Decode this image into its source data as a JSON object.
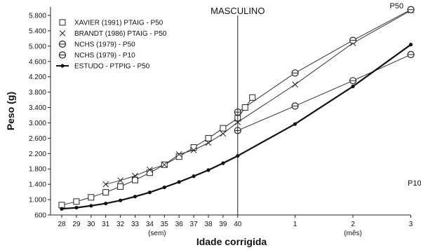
{
  "chart_data": {
    "type": "line",
    "title": "MASCULINO",
    "xlabel": "Idade corrigida",
    "ylabel": "Peso (g)",
    "x_ticks": [
      "28",
      "29",
      "30",
      "31",
      "32",
      "33",
      "34",
      "35",
      "36",
      "37",
      "38",
      "39",
      "40",
      "1",
      "2",
      "3"
    ],
    "x_unit_labels": [
      {
        "text": "(sem)",
        "at": 34.5
      },
      {
        "text": "(mês)",
        "at": 2
      }
    ],
    "x_scale_note": "weeks 28-40 then months 1-3 after term",
    "ylim": [
      600,
      6000
    ],
    "y_ticks": [
      "600",
      "1.000",
      "1.400",
      "1.800",
      "2.200",
      "2.600",
      "3.000",
      "3.400",
      "3.800",
      "4.200",
      "4.600",
      "5.000",
      "5.400",
      "5.800"
    ],
    "y_tick_values": [
      600,
      1000,
      1400,
      1800,
      2200,
      2600,
      3000,
      3400,
      3800,
      4200,
      4600,
      5000,
      5400,
      5800
    ],
    "legend_position": "top-left",
    "end_labels": [
      {
        "text": "P50",
        "series": 2
      },
      {
        "text": "P10",
        "series": 3
      }
    ],
    "series": [
      {
        "name": "XAVIER (1991) PTAIG - P50",
        "marker": "square",
        "points": [
          [
            28,
            860
          ],
          [
            29,
            950
          ],
          [
            30,
            1060
          ],
          [
            31,
            1190
          ],
          [
            32,
            1340
          ],
          [
            33,
            1510
          ],
          [
            34,
            1700
          ],
          [
            35,
            1910
          ],
          [
            36,
            2120
          ],
          [
            37,
            2360
          ],
          [
            38,
            2600
          ],
          [
            39,
            2860
          ],
          [
            40,
            3120
          ],
          [
            40.5,
            3400
          ],
          [
            41,
            3660
          ]
        ]
      },
      {
        "name": "BRANDT (1986) PTAIG - P50",
        "marker": "x",
        "points": [
          [
            31,
            1400
          ],
          [
            32,
            1500
          ],
          [
            33,
            1620
          ],
          [
            34,
            1780
          ],
          [
            35,
            1910
          ],
          [
            36,
            2180
          ],
          [
            37,
            2290
          ],
          [
            38,
            2480
          ],
          [
            39,
            2720
          ],
          [
            40,
            3020
          ],
          [
            1,
            4000
          ],
          [
            2,
            5080
          ],
          [
            3,
            5930
          ]
        ]
      },
      {
        "name": "NCHS (1979) - P50",
        "marker": "circle",
        "points": [
          [
            40,
            3280
          ],
          [
            1,
            4300
          ],
          [
            2,
            5150
          ],
          [
            3,
            5950
          ]
        ]
      },
      {
        "name": "NCHS (1979) - P10",
        "marker": "circle",
        "points": [
          [
            40,
            2800
          ],
          [
            1,
            3440
          ],
          [
            2,
            4100
          ],
          [
            3,
            4780
          ]
        ]
      },
      {
        "name": "ESTUDO - PTPIG - P50",
        "marker": "dot",
        "points": [
          [
            28,
            760
          ],
          [
            29,
            790
          ],
          [
            30,
            840
          ],
          [
            31,
            900
          ],
          [
            32,
            980
          ],
          [
            33,
            1080
          ],
          [
            34,
            1190
          ],
          [
            35,
            1320
          ],
          [
            36,
            1460
          ],
          [
            37,
            1610
          ],
          [
            38,
            1770
          ],
          [
            39,
            1950
          ],
          [
            40,
            2140
          ],
          [
            1,
            2970
          ],
          [
            2,
            3950
          ],
          [
            3,
            5040
          ]
        ]
      }
    ]
  }
}
